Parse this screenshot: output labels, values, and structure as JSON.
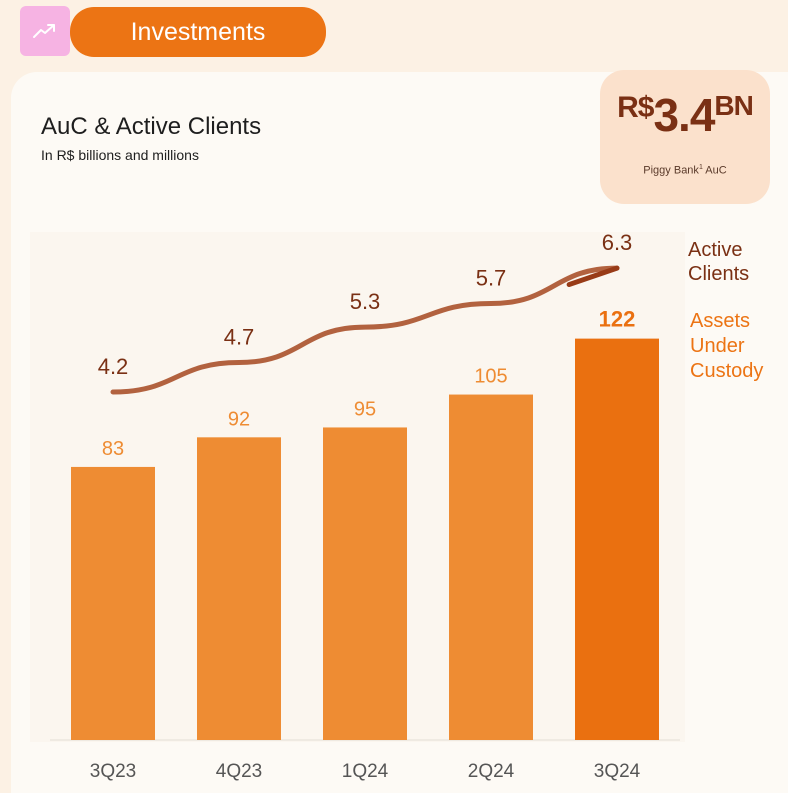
{
  "header": {
    "section_label": "Investments",
    "icon": "trending-up-icon"
  },
  "kpi": {
    "currency": "R$",
    "value": "3.4",
    "unit": "BN",
    "label": "Piggy Bank",
    "footnote": "1",
    "label_suffix": " AuC"
  },
  "chart_data": {
    "type": "bar",
    "title": "AuC & Active Clients",
    "subtitle": "In R$ billions and millions",
    "categories": [
      "3Q23",
      "4Q23",
      "1Q24",
      "2Q24",
      "3Q24"
    ],
    "ylim": [
      0,
      130
    ],
    "series": [
      {
        "name": "Assets Under Custody",
        "type": "bar",
        "values": [
          83,
          92,
          95,
          105,
          122
        ],
        "color": "#ee8c33",
        "highlight_color": "#ea7010",
        "highlight_index": 4
      },
      {
        "name": "Active Clients",
        "type": "line",
        "values": [
          4.2,
          4.7,
          5.3,
          5.7,
          6.3
        ],
        "color": "#b2623f",
        "last_segment_color": "#983b17"
      }
    ],
    "legend": {
      "active_clients_lines": [
        "Active",
        "Clients"
      ],
      "auc_lines": [
        "Assets",
        "Under",
        "Custody"
      ],
      "placement": "right"
    },
    "grid": false
  }
}
